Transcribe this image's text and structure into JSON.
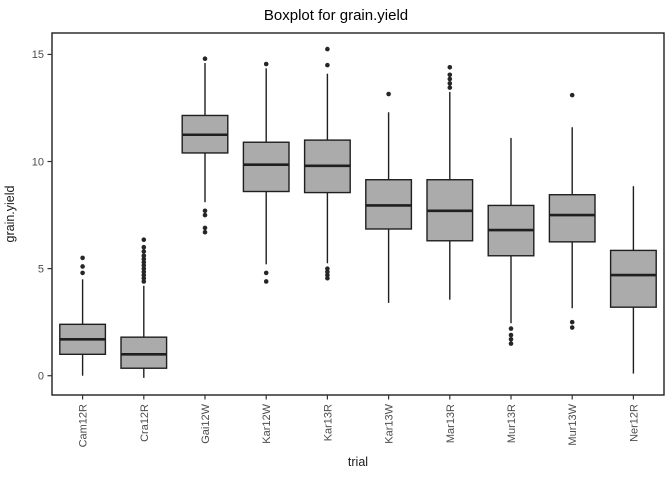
{
  "chart_data": {
    "type": "boxplot",
    "title": "Boxplot for grain.yield",
    "xlabel": "trial",
    "ylabel": "grain.yield",
    "ylim": [
      -0.9,
      16.0
    ],
    "yticks": [
      0,
      5,
      10,
      15
    ],
    "grid": false,
    "legend": false,
    "box_fill": "#ababab",
    "stroke_color": "#1f1f1f",
    "outlier_color": "#262626",
    "axis_text_color": "#4d4d4d",
    "categories": [
      "Cam12R",
      "Cra12R",
      "Gai12W",
      "Kar12W",
      "Kar13R",
      "Kar13W",
      "Mar13R",
      "Mur13R",
      "Mur13W",
      "Ner12R"
    ],
    "boxes": [
      {
        "label": "Cam12R",
        "whisker_low": 0.0,
        "q1": 1.0,
        "median": 1.7,
        "q3": 2.4,
        "whisker_high": 4.5,
        "outliers": [
          4.8,
          5.1,
          5.5
        ]
      },
      {
        "label": "Cra12R",
        "whisker_low": -0.1,
        "q1": 0.35,
        "median": 1.0,
        "q3": 1.8,
        "whisker_high": 4.2,
        "outliers": [
          4.4,
          4.55,
          4.7,
          4.85,
          5.0,
          5.15,
          5.3,
          5.45,
          5.6,
          5.8,
          6.0,
          6.35
        ]
      },
      {
        "label": "Gai12W",
        "whisker_low": 8.1,
        "q1": 10.4,
        "median": 11.25,
        "q3": 12.15,
        "whisker_high": 14.6,
        "outliers": [
          6.7,
          6.9,
          7.5,
          7.7,
          14.8
        ]
      },
      {
        "label": "Kar12W",
        "whisker_low": 5.2,
        "q1": 8.6,
        "median": 9.85,
        "q3": 10.9,
        "whisker_high": 14.35,
        "outliers": [
          4.4,
          4.8,
          14.55
        ]
      },
      {
        "label": "Kar13R",
        "whisker_low": 5.25,
        "q1": 8.55,
        "median": 9.8,
        "q3": 11.0,
        "whisker_high": 14.1,
        "outliers": [
          4.55,
          4.7,
          4.85,
          5.0,
          14.5,
          15.25
        ]
      },
      {
        "label": "Kar13W",
        "whisker_low": 3.4,
        "q1": 6.85,
        "median": 7.95,
        "q3": 9.15,
        "whisker_high": 12.3,
        "outliers": [
          13.15
        ]
      },
      {
        "label": "Mar13R",
        "whisker_low": 3.55,
        "q1": 6.3,
        "median": 7.7,
        "q3": 9.15,
        "whisker_high": 13.25,
        "outliers": [
          13.45,
          13.65,
          13.85,
          14.05,
          14.4
        ]
      },
      {
        "label": "Mur13R",
        "whisker_low": 2.45,
        "q1": 5.6,
        "median": 6.8,
        "q3": 7.95,
        "whisker_high": 11.1,
        "outliers": [
          1.5,
          1.7,
          1.9,
          2.2
        ]
      },
      {
        "label": "Mur13W",
        "whisker_low": 3.15,
        "q1": 6.25,
        "median": 7.5,
        "q3": 8.45,
        "whisker_high": 11.6,
        "outliers": [
          2.25,
          2.5,
          13.1
        ]
      },
      {
        "label": "Ner12R",
        "whisker_low": 0.1,
        "q1": 3.2,
        "median": 4.7,
        "q3": 5.85,
        "whisker_high": 8.85,
        "outliers": []
      }
    ]
  }
}
